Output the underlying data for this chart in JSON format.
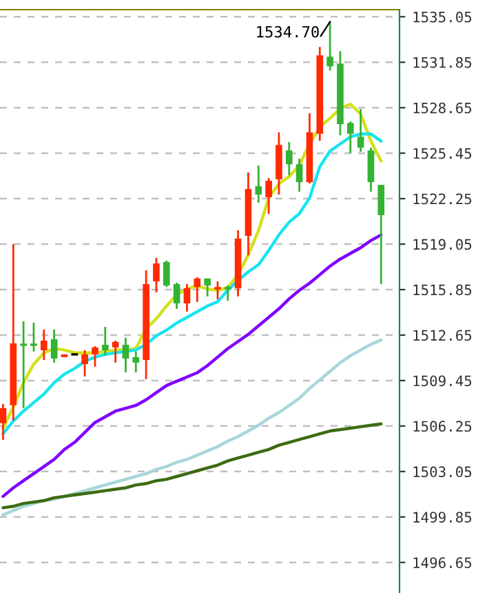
{
  "chart_data": {
    "type": "candlestick",
    "categories": [
      null,
      null,
      null,
      null,
      null,
      null,
      null,
      null,
      null,
      null,
      null,
      null,
      null,
      null,
      null,
      null,
      null,
      null,
      null,
      null,
      null,
      null,
      null,
      null,
      null,
      null,
      null,
      null,
      null,
      null,
      null,
      null,
      null,
      null,
      null,
      null,
      null,
      null
    ],
    "ohlc": [
      [
        1506.45,
        1507.8,
        1505.28,
        1507.51
      ],
      [
        1507.71,
        1519.05,
        1506.64,
        1512.07
      ],
      [
        1511.97,
        1513.62,
        1507.51,
        1511.97
      ],
      [
        1511.97,
        1513.52,
        1511.49,
        1511.97
      ],
      [
        1511.58,
        1513.04,
        1510.9,
        1512.26
      ],
      [
        1512.36,
        1513.04,
        1510.71,
        1511.0
      ],
      [
        1511.1,
        1511.29,
        1511.1,
        1511.29
      ],
      [
        1511.29,
        1511.29,
        1511.29,
        1511.29
      ],
      [
        1510.61,
        1511.58,
        1509.74,
        1511.29
      ],
      [
        1511.29,
        1511.87,
        1510.42,
        1511.78
      ],
      [
        1511.97,
        1513.23,
        1511.2,
        1511.58
      ],
      [
        1511.78,
        1512.26,
        1510.71,
        1512.17
      ],
      [
        1511.97,
        1512.46,
        1510.03,
        1511.0
      ],
      [
        1511.1,
        1511.49,
        1510.03,
        1510.71
      ],
      [
        1510.9,
        1517.21,
        1509.55,
        1516.24
      ],
      [
        1516.43,
        1518.08,
        1515.66,
        1517.69
      ],
      [
        1517.79,
        1517.89,
        1516.04,
        1516.14
      ],
      [
        1516.24,
        1516.34,
        1514.49,
        1514.88
      ],
      [
        1514.88,
        1516.24,
        1514.3,
        1515.95
      ],
      [
        1516.04,
        1516.72,
        1514.98,
        1516.63
      ],
      [
        1516.63,
        1516.63,
        1515.37,
        1516.14
      ],
      [
        1515.95,
        1516.43,
        1515.17,
        1515.95
      ],
      [
        1515.95,
        1516.14,
        1515.07,
        1515.95
      ],
      [
        1515.95,
        1520.02,
        1515.37,
        1519.44
      ],
      [
        1519.63,
        1524.09,
        1518.27,
        1522.93
      ],
      [
        1523.12,
        1524.58,
        1521.96,
        1522.54
      ],
      [
        1522.35,
        1523.7,
        1521.18,
        1523.51
      ],
      [
        1523.61,
        1526.92,
        1522.54,
        1526.03
      ],
      [
        1525.64,
        1526.23,
        1523.9,
        1524.67
      ],
      [
        1524.67,
        1525.06,
        1522.74,
        1523.41
      ],
      [
        1523.41,
        1528.26,
        1523.32,
        1526.92
      ],
      [
        1526.81,
        1532.92,
        1526.32,
        1532.34
      ],
      [
        1532.24,
        1534.7,
        1531.27,
        1531.56
      ],
      [
        1531.75,
        1532.63,
        1526.71,
        1527.49
      ],
      [
        1527.58,
        1527.68,
        1525.45,
        1526.81
      ],
      [
        1526.61,
        1528.55,
        1525.55,
        1525.84
      ],
      [
        1525.64,
        1525.84,
        1522.74,
        1523.41
      ],
      [
        1523.22,
        1523.22,
        1516.24,
        1521.09
      ]
    ],
    "colors": [
      "#ff2a00",
      "#ff2a00",
      "#33b233",
      "#33b233",
      "#ff2a00",
      "#33b233",
      "#ff2a00",
      "#000000",
      "#ff2a00",
      "#ff2a00",
      "#33b233",
      "#ff2a00",
      "#33b233",
      "#33b233",
      "#ff2a00",
      "#ff2a00",
      "#33b233",
      "#33b233",
      "#ff2a00",
      "#ff2a00",
      "#33b233",
      "#ff2a00",
      "#33b233",
      "#ff2a00",
      "#ff2a00",
      "#33b233",
      "#ff2a00",
      "#ff2a00",
      "#33b233",
      "#33b233",
      "#ff2a00",
      "#ff2a00",
      "#33b233",
      "#33b233",
      "#33b233",
      "#33b233",
      "#33b233",
      "#33b233"
    ],
    "series": [
      {
        "type": "line",
        "color": "#d4e01c",
        "values": [
          1506.1,
          1507.6,
          1509.3,
          1510.6,
          1511.4,
          1511.7,
          1511.6,
          1511.4,
          1511.4,
          1511.4,
          1511.5,
          1511.6,
          1511.6,
          1511.7,
          1513.1,
          1513.8,
          1514.7,
          1515.5,
          1515.9,
          1516.1,
          1515.9,
          1515.8,
          1516.0,
          1516.9,
          1518.3,
          1520.0,
          1522.3,
          1523.3,
          1523.8,
          1524.6,
          1526.1,
          1527.3,
          1527.9,
          1528.6,
          1528.9,
          1528.2,
          1526.3,
          1524.9
        ]
      },
      {
        "type": "line",
        "color": "#1ae4f0",
        "values": [
          1505.7,
          1506.6,
          1507.3,
          1507.9,
          1508.5,
          1509.3,
          1509.9,
          1510.3,
          1510.8,
          1511.1,
          1511.3,
          1511.4,
          1511.5,
          1511.6,
          1512.0,
          1512.6,
          1513.0,
          1513.5,
          1513.9,
          1514.3,
          1514.7,
          1515.0,
          1515.8,
          1516.5,
          1517.1,
          1517.6,
          1518.6,
          1519.7,
          1520.6,
          1521.2,
          1522.3,
          1524.5,
          1525.6,
          1526.1,
          1526.6,
          1526.8,
          1526.8,
          1526.3
        ]
      },
      {
        "type": "line",
        "color": "#8000ff",
        "values": [
          1501.3,
          1501.9,
          1502.4,
          1502.9,
          1503.4,
          1503.9,
          1504.6,
          1505.1,
          1505.8,
          1506.5,
          1506.9,
          1507.3,
          1507.5,
          1507.7,
          1508.1,
          1508.6,
          1509.1,
          1509.4,
          1509.7,
          1510.0,
          1510.5,
          1511.1,
          1511.7,
          1512.2,
          1512.7,
          1513.3,
          1513.9,
          1514.5,
          1515.2,
          1515.8,
          1516.3,
          1516.9,
          1517.5,
          1518.0,
          1518.4,
          1518.8,
          1519.3,
          1519.7
        ]
      },
      {
        "type": "line",
        "color": "#a8d6da",
        "values": [
          1500.0,
          1500.3,
          1500.6,
          1500.8,
          1501.0,
          1501.1,
          1501.3,
          1501.5,
          1501.7,
          1501.9,
          1502.1,
          1502.3,
          1502.5,
          1502.7,
          1502.9,
          1503.2,
          1503.4,
          1503.7,
          1503.9,
          1504.2,
          1504.5,
          1504.8,
          1505.2,
          1505.5,
          1505.9,
          1506.3,
          1506.8,
          1507.2,
          1507.7,
          1508.2,
          1508.9,
          1509.5,
          1510.1,
          1510.7,
          1511.2,
          1511.6,
          1512.0,
          1512.3
        ]
      },
      {
        "type": "line",
        "color": "#3d6b12",
        "values": [
          1500.5,
          1500.6,
          1500.8,
          1500.9,
          1501.0,
          1501.2,
          1501.3,
          1501.4,
          1501.5,
          1501.6,
          1501.7,
          1501.8,
          1501.9,
          1502.1,
          1502.2,
          1502.4,
          1502.5,
          1502.7,
          1502.9,
          1503.1,
          1503.3,
          1503.5,
          1503.8,
          1504.0,
          1504.2,
          1504.4,
          1504.6,
          1504.9,
          1505.1,
          1505.3,
          1505.5,
          1505.7,
          1505.9,
          1506.0,
          1506.1,
          1506.2,
          1506.3,
          1506.4
        ]
      }
    ],
    "ylim": [
      1494.5,
      1535.55
    ],
    "yticks": [
      1535.05,
      1531.85,
      1528.65,
      1525.45,
      1522.25,
      1519.05,
      1515.85,
      1512.65,
      1509.45,
      1506.25,
      1503.05,
      1499.85,
      1496.65
    ],
    "grid": "y",
    "tick_labels": "y",
    "annotations": [
      "1534.70"
    ]
  }
}
